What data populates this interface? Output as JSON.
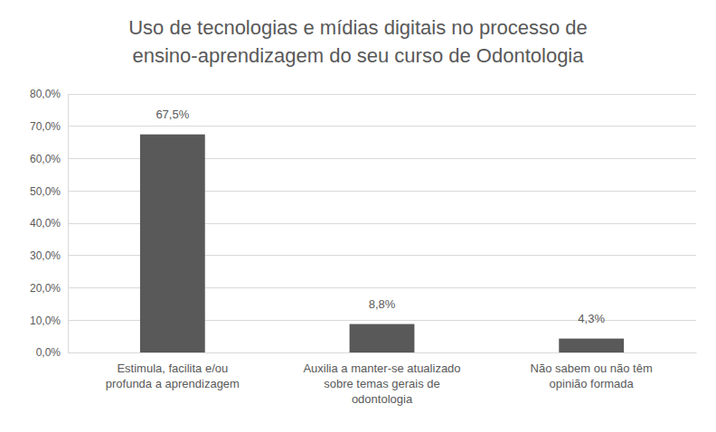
{
  "chart_data": {
    "type": "bar",
    "title": "Uso de tecnologias e mídias digitais no processo de\nensino-aprendizagem do seu curso de Odontologia",
    "categories": [
      "Estimula, facilita e/ou\nprofunda a aprendizagem",
      "Auxilia a manter-se atualizado\nsobre temas gerais de\nodontologia",
      "Não sabem ou não têm\nopinião formada"
    ],
    "values": [
      67.5,
      8.8,
      4.3
    ],
    "value_labels": [
      "67,5%",
      "8,8%",
      "4,3%"
    ],
    "color": "#595959",
    "ylim": [
      0,
      80
    ],
    "yticks": [
      {
        "value": 0,
        "label": "0,0%"
      },
      {
        "value": 10,
        "label": "10,0%"
      },
      {
        "value": 20,
        "label": "20,0%"
      },
      {
        "value": 30,
        "label": "30,0%"
      },
      {
        "value": 40,
        "label": "40,0%"
      },
      {
        "value": 50,
        "label": "50,0%"
      },
      {
        "value": 60,
        "label": "60,0%"
      },
      {
        "value": 70,
        "label": "70,0%"
      },
      {
        "value": 80,
        "label": "80,0%"
      }
    ],
    "grid": true,
    "data_labels": true
  }
}
